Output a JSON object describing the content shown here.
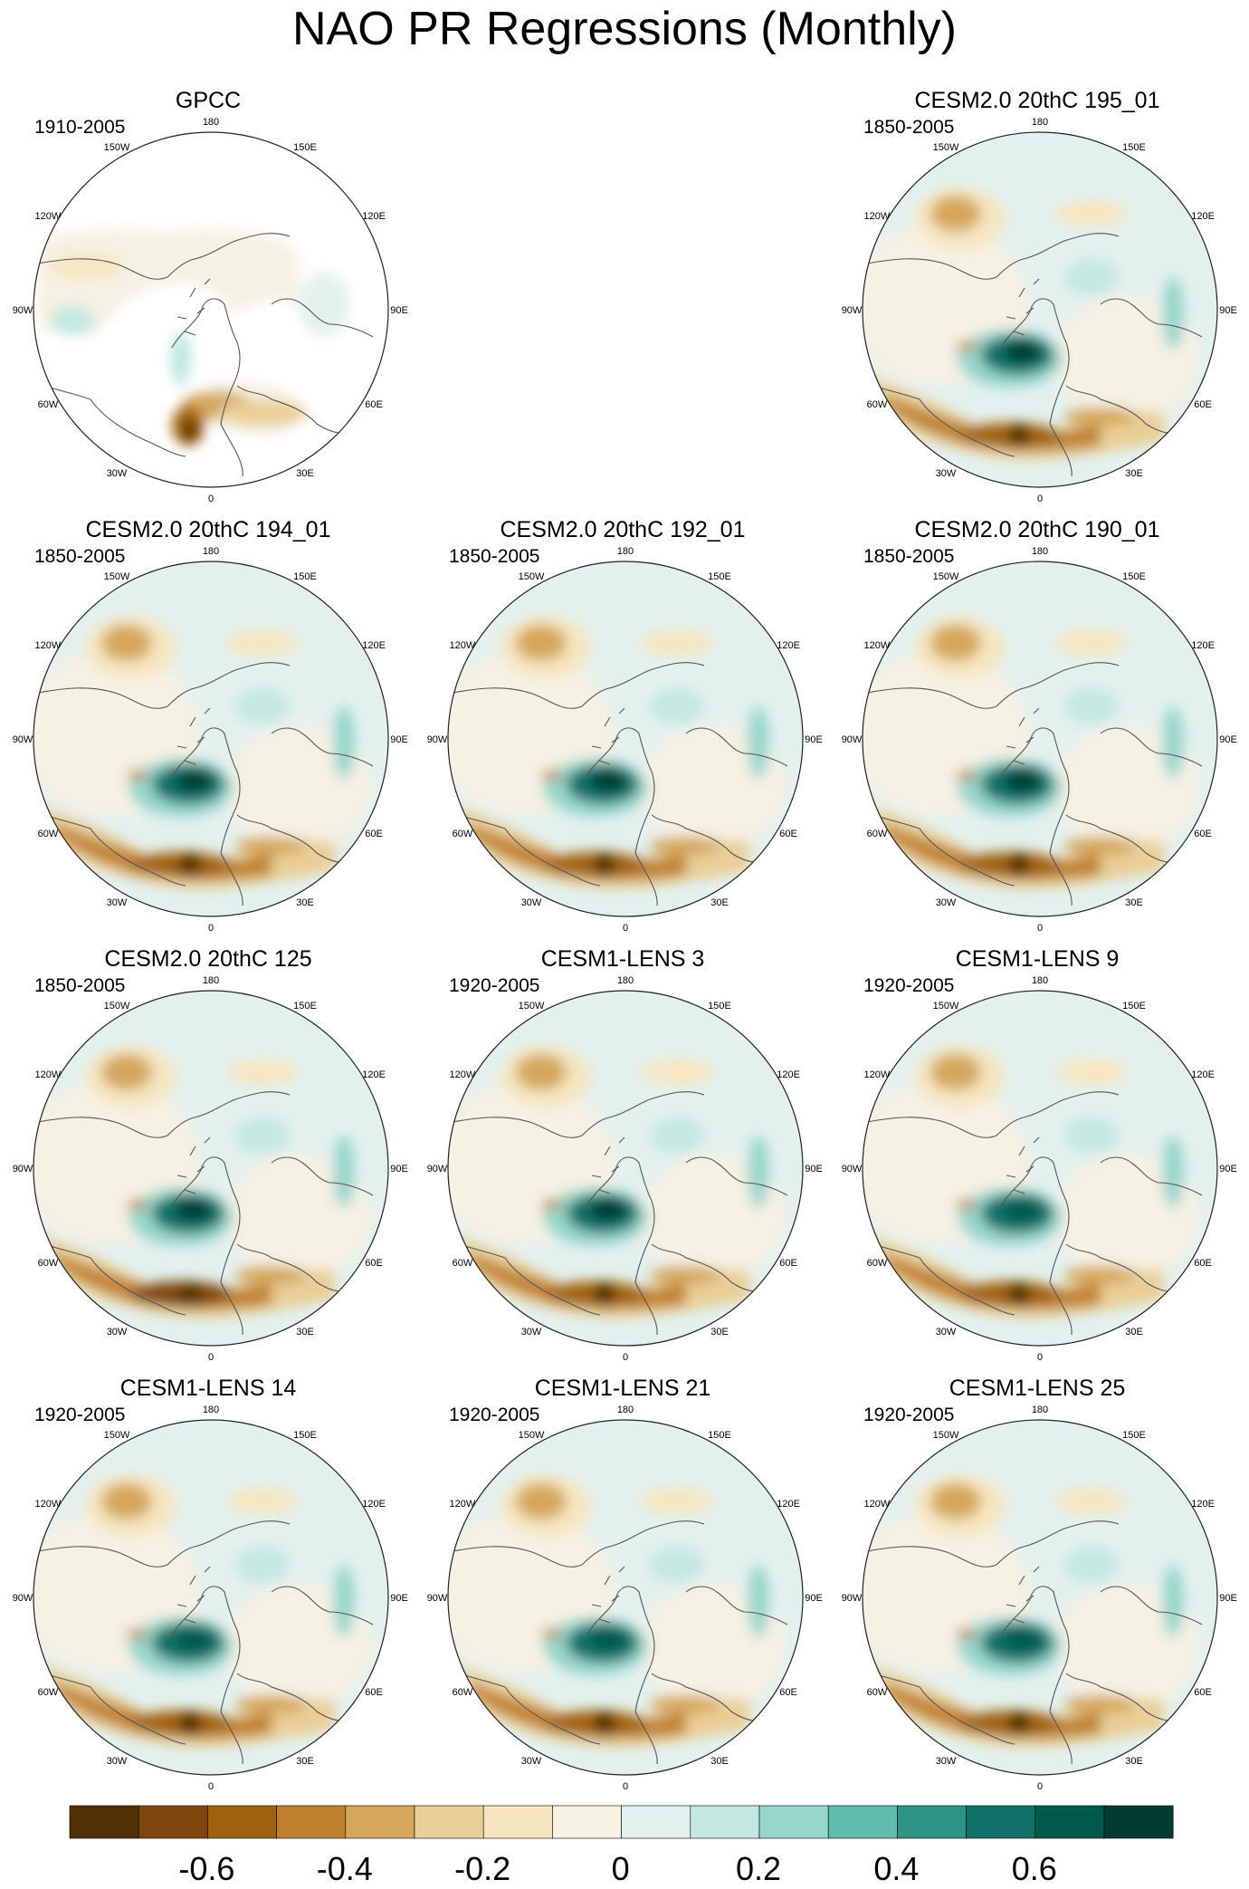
{
  "title": "NAO PR Regressions (Monthly)",
  "longitude_labels": {
    "top": "180",
    "bottom": "0",
    "left": "90W",
    "right": "90E",
    "upper_left": "150W",
    "upper_right": "150E",
    "mid_upper_left": "120W",
    "mid_upper_right": "120E",
    "mid_lower_left": "60W",
    "mid_lower_right": "60E",
    "lower_left": "30W",
    "lower_right": "30E"
  },
  "panels": [
    {
      "title": "GPCC",
      "period": "1910-2005",
      "land_only": true,
      "strength": 0.8
    },
    null,
    {
      "title": "CESM2.0 20thC 195_01",
      "period": "1850-2005",
      "land_only": false,
      "strength": 1.0
    },
    {
      "title": "CESM2.0 20thC 194_01",
      "period": "1850-2005",
      "land_only": false,
      "strength": 1.0
    },
    {
      "title": "CESM2.0 20thC 192_01",
      "period": "1850-2005",
      "land_only": false,
      "strength": 1.0
    },
    {
      "title": "CESM2.0 20thC 190_01",
      "period": "1850-2005",
      "land_only": false,
      "strength": 1.0
    },
    {
      "title": "CESM2.0 20thC 125",
      "period": "1850-2005",
      "land_only": false,
      "strength": 1.05
    },
    {
      "title": "CESM1-LENS 3",
      "period": "1920-2005",
      "land_only": false,
      "strength": 1.0
    },
    {
      "title": "CESM1-LENS 9",
      "period": "1920-2005",
      "land_only": false,
      "strength": 0.85
    },
    {
      "title": "CESM1-LENS 14",
      "period": "1920-2005",
      "land_only": false,
      "strength": 0.95
    },
    {
      "title": "CESM1-LENS 21",
      "period": "1920-2005",
      "land_only": false,
      "strength": 0.9
    },
    {
      "title": "CESM1-LENS 25",
      "period": "1920-2005",
      "land_only": false,
      "strength": 0.85
    }
  ],
  "colorbar": {
    "colors": [
      "#543005",
      "#7f470e",
      "#a0620f",
      "#bf812d",
      "#d4a75c",
      "#e9cf96",
      "#f5e6c0",
      "#f5f1e3",
      "#e3f1ee",
      "#c3e8e2",
      "#97d6cb",
      "#62bcac",
      "#2d9486",
      "#0f7167",
      "#005a4c",
      "#003c30"
    ],
    "labels": [
      "-0.6",
      "-0.4",
      "-0.2",
      "0",
      "0.2",
      "0.4",
      "0.6"
    ]
  }
}
